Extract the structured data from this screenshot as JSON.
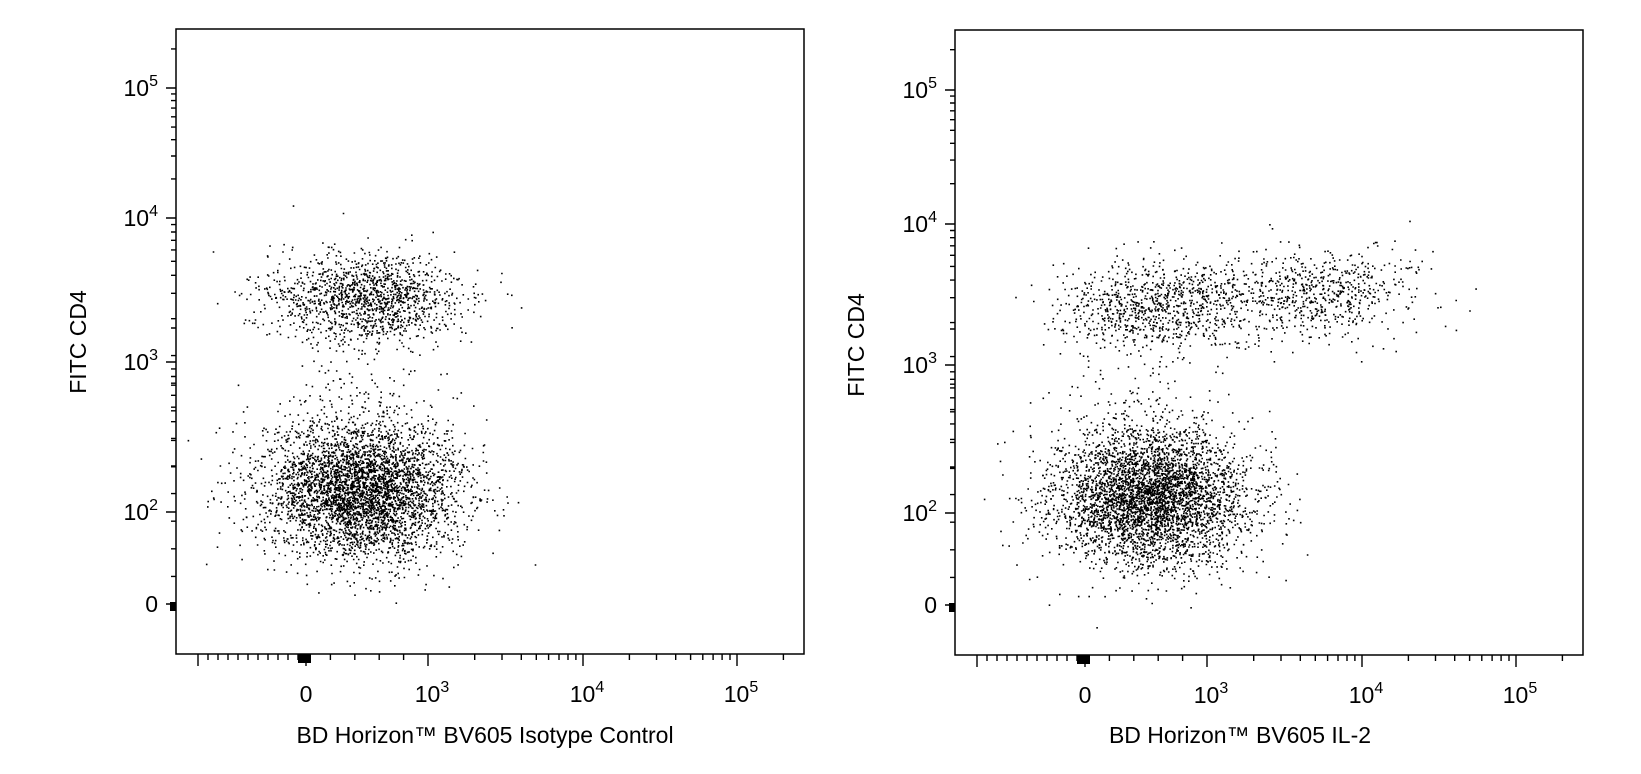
{
  "chart_data": [
    {
      "type": "scatter",
      "xlabel": "BD Horizon™ BV605 Isotype Control",
      "ylabel": "FITC CD4",
      "x_scale": "biexponential",
      "y_scale": "biexponential",
      "x_ticks": [
        "0",
        "10³",
        "10⁴",
        "10⁵"
      ],
      "y_ticks": [
        "0",
        "10²",
        "10³",
        "10⁴",
        "10⁵"
      ],
      "point_color": "#000000",
      "populations": [
        {
          "name": "",
          "center_x": 500,
          "center_y": 2800,
          "count": 1400
        },
        {
          "name": "",
          "center_x": 450,
          "center_y": 140,
          "count": 4200
        }
      ]
    },
    {
      "type": "scatter",
      "xlabel": "BD Horizon™ BV605 IL-2",
      "ylabel": "FITC CD4",
      "x_scale": "biexponential",
      "y_scale": "biexponential",
      "x_ticks": [
        "0",
        "10³",
        "10⁴",
        "10⁵"
      ],
      "y_ticks": [
        "0",
        "10²",
        "10³",
        "10⁴",
        "10⁵"
      ],
      "point_color": "#000000",
      "populations": [
        {
          "name": "",
          "center_x": 600,
          "center_y": 2700,
          "count": 900
        },
        {
          "name": "",
          "center_x": 5000,
          "center_y": 3200,
          "count": 700
        },
        {
          "name": "",
          "center_x": 550,
          "center_y": 130,
          "count": 4200
        }
      ]
    }
  ]
}
